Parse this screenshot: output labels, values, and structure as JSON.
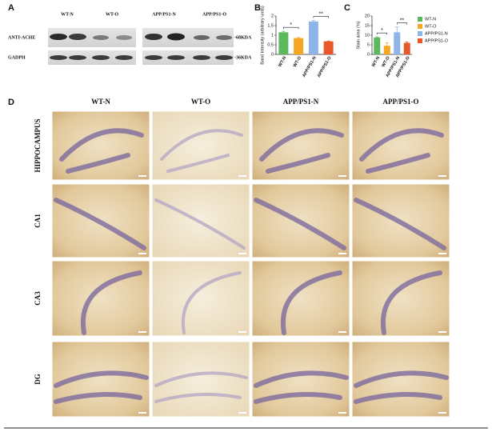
{
  "panel_labels": [
    "A",
    "B",
    "C",
    "D"
  ],
  "blot": {
    "columns": [
      "WT-N",
      "WT-O",
      "APP/PS1-N",
      "APP/PS1-O"
    ],
    "rows": [
      "ANTI-ACHE",
      "GADPH"
    ],
    "sizes": [
      "-68KDA",
      "-36KDA"
    ]
  },
  "chart_data": [
    {
      "type": "bar",
      "y_label": "Band Intensity (arbitrary units)",
      "categories": [
        "WT-N",
        "WT-O",
        "APP/PS1-N",
        "APP/PS1-O"
      ],
      "values": [
        1.15,
        0.85,
        1.72,
        0.68
      ],
      "errors": [
        0.05,
        0.03,
        0.05,
        0.02
      ],
      "colors": [
        "#5cb85c",
        "#f5a623",
        "#8fb4e8",
        "#e8582a"
      ],
      "ylim": [
        0,
        2
      ],
      "yticks": [
        0,
        0.5,
        1,
        1.5,
        2
      ],
      "annotations": [
        "*",
        "**"
      ]
    },
    {
      "type": "bar",
      "y_label": "Stain area (%)",
      "categories": [
        "WT-N",
        "WT-O",
        "APP/PS1-N",
        "APP/PS1-O"
      ],
      "values": [
        8.8,
        4.5,
        11.5,
        6.0
      ],
      "errors": [
        0.3,
        1.5,
        2.8,
        0.5
      ],
      "colors": [
        "#5cb85c",
        "#f5a623",
        "#8fb4e8",
        "#e8582a"
      ],
      "ylim": [
        0,
        20
      ],
      "yticks": [
        0,
        5,
        10,
        15,
        20
      ],
      "annotations": [
        "*",
        "**"
      ]
    }
  ],
  "legend": {
    "names": [
      "WT-N",
      "WT-O",
      "APP/PS1-N",
      "APP/PS1-O"
    ],
    "colors": [
      "#5cb85c",
      "#f5a623",
      "#8fb4e8",
      "#e8582a"
    ]
  },
  "histology": {
    "columns": [
      "WT-N",
      "WT-O",
      "APP/PS1-N",
      "APP/PS1-O"
    ],
    "rows": [
      "HIPPOCAMPUS",
      "CA1",
      "CA3",
      "DG"
    ]
  }
}
